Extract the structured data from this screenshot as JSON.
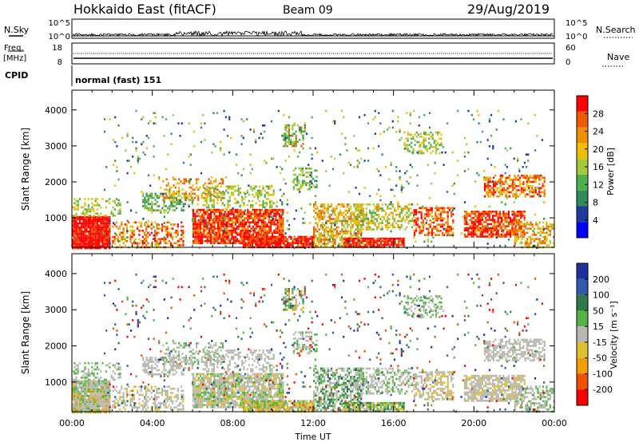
{
  "header": {
    "station": "Hokkaido East (fitACF)",
    "beam": "Beam 09",
    "date": "29/Aug/2019"
  },
  "strip_panels": {
    "nsky": {
      "label": "N.Sky",
      "ticks": [
        "10^5",
        "10^0"
      ]
    },
    "nsearch": {
      "label": "N.Search",
      "ticks": [
        "10^5",
        "10^0"
      ]
    },
    "freq": {
      "label_top": "Freq.",
      "label_unit": "[MHz]",
      "ticks": [
        "18",
        "8"
      ]
    },
    "nave": {
      "label": "Nave",
      "ticks": [
        "60",
        "0"
      ]
    },
    "cpid": {
      "label": "CPID",
      "value": "normal (fast) 151"
    }
  },
  "colors": {
    "power_scale": [
      "#0000ff",
      "#1e3c9c",
      "#2f8a5c",
      "#4db04a",
      "#a8c83c",
      "#f0c000",
      "#f09000",
      "#f05a00",
      "#ff0000"
    ],
    "velocity_scale": [
      "#1e2fa0",
      "#2f5ab0",
      "#2f7a4a",
      "#52b442",
      "#b8b8b0",
      "#e0c030",
      "#f0a000",
      "#f05000",
      "#ff0000"
    ]
  },
  "chart_data": [
    {
      "type": "heatmap",
      "name": "power",
      "ylabel": "Slant Range [km]",
      "yticks": [
        1000,
        2000,
        3000,
        4000
      ],
      "ylim": [
        180,
        4550
      ],
      "xlim": [
        0,
        24
      ],
      "colorbar": {
        "label": "Power [dB]",
        "ticks": [
          4,
          8,
          12,
          16,
          20,
          24,
          28
        ],
        "range": [
          0,
          32
        ]
      }
    },
    {
      "type": "heatmap",
      "name": "velocity",
      "ylabel": "Slant Range [km]",
      "yticks": [
        1000,
        2000,
        3000,
        4000
      ],
      "ylim": [
        180,
        4550
      ],
      "xlim": [
        0,
        24
      ],
      "xlabel": "Time UT",
      "xticks": [
        "00:00",
        "04:00",
        "08:00",
        "12:00",
        "16:00",
        "20:00",
        "00:00"
      ],
      "colorbar": {
        "label": "Velocity [m s⁻¹]",
        "ticks": [
          200,
          100,
          50,
          15,
          -15,
          -50,
          -100,
          -200
        ]
      }
    }
  ]
}
